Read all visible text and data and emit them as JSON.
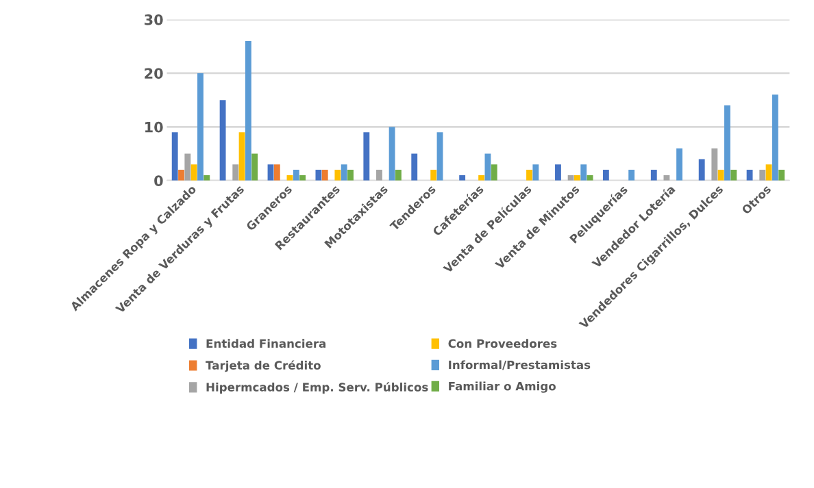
{
  "chart_data": {
    "type": "bar",
    "categories": [
      "Almacenes Ropa y Calzado",
      "Venta de Verduras y Frutas",
      "Graneros",
      "Restaurantes",
      "Mototaxistas",
      "Tenderos",
      "Cafeterías",
      "Venta de Películas",
      "Venta de Minutos",
      "Peluquerías",
      "Vendedor Lotería",
      "Vendedores Cigarrillos, Dulces",
      "Otros"
    ],
    "series": [
      {
        "name": "Entidad Financiera",
        "color": "#4472c4",
        "values": [
          9,
          15,
          3,
          2,
          9,
          5,
          1,
          0,
          3,
          2,
          2,
          4,
          2
        ]
      },
      {
        "name": "Tarjeta de Crédito",
        "color": "#ed7d31",
        "values": [
          2,
          0,
          3,
          2,
          0,
          0,
          0,
          0,
          0,
          0,
          0,
          0,
          0
        ]
      },
      {
        "name": "Hipermcados / Emp. Serv. Públicos",
        "color": "#a5a5a5",
        "values": [
          5,
          3,
          0,
          0,
          2,
          0,
          0,
          0,
          1,
          0,
          1,
          6,
          2
        ]
      },
      {
        "name": "Con Proveedores",
        "color": "#ffc000",
        "values": [
          3,
          9,
          1,
          2,
          0,
          2,
          1,
          2,
          1,
          0,
          0,
          2,
          3
        ]
      },
      {
        "name": "Informal/Prestamistas",
        "color": "#5b9bd5",
        "values": [
          20,
          26,
          2,
          3,
          10,
          9,
          5,
          3,
          3,
          2,
          6,
          14,
          16
        ]
      },
      {
        "name": "Familiar o Amigo",
        "color": "#70ad47",
        "values": [
          1,
          5,
          1,
          2,
          2,
          0,
          3,
          0,
          1,
          0,
          0,
          2,
          2
        ]
      }
    ],
    "ylim": [
      0,
      30
    ],
    "yticks": [
      0,
      10,
      20,
      30
    ],
    "grid": "y",
    "legend": "bottom"
  }
}
